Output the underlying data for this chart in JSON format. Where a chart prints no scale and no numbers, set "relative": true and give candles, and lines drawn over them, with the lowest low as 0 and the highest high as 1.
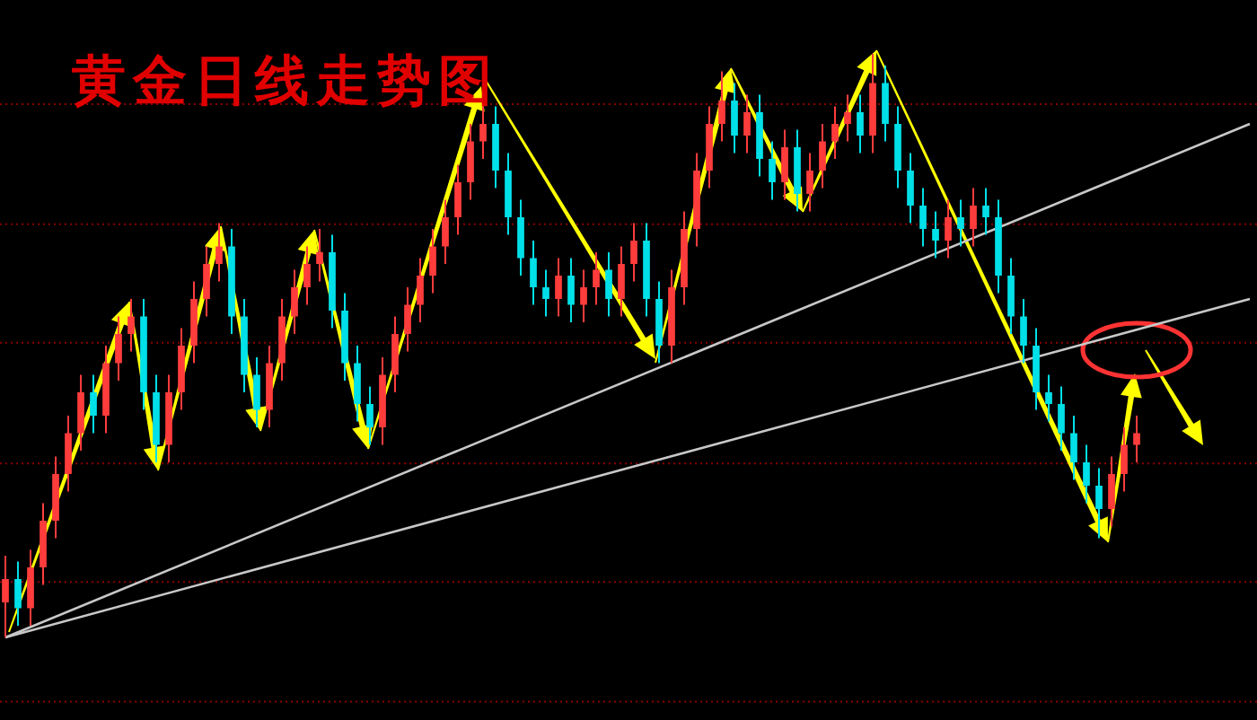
{
  "chart_data": {
    "type": "candlestick",
    "title": "黄金日线走势图",
    "relative": true,
    "ref_lines": [
      {
        "axis": "y",
        "value": 0.914,
        "color": "#8b0000",
        "line_style": "dotted"
      },
      {
        "axis": "y",
        "value": 0.708,
        "color": "#8b0000",
        "line_style": "dotted"
      },
      {
        "axis": "y",
        "value": 0.505,
        "color": "#8b0000",
        "line_style": "dotted"
      },
      {
        "axis": "y",
        "value": 0.298,
        "color": "#8b0000",
        "line_style": "dotted"
      },
      {
        "axis": "y",
        "value": 0.095,
        "color": "#8b0000",
        "line_style": "dotted"
      },
      {
        "axis": "y",
        "value": -0.11,
        "color": "#8b0000",
        "line_style": "dotted"
      }
    ],
    "categories": [
      null,
      null,
      null,
      null,
      null,
      null,
      null,
      null,
      null,
      null,
      null,
      null,
      null,
      null,
      null,
      null,
      null,
      null,
      null,
      null,
      null,
      null,
      null,
      null,
      null,
      null,
      null,
      null,
      null,
      null,
      null,
      null,
      null,
      null,
      null,
      null,
      null,
      null,
      null,
      null,
      null,
      null,
      null,
      null,
      null,
      null,
      null,
      null,
      null,
      null,
      null,
      null,
      null,
      null,
      null,
      null,
      null,
      null,
      null,
      null,
      null,
      null,
      null,
      null,
      null,
      null,
      null,
      null,
      null,
      null,
      null,
      null,
      null,
      null,
      null,
      null,
      null,
      null,
      null,
      null,
      null,
      null,
      null,
      null,
      null,
      null,
      null,
      null,
      null,
      null,
      null,
      null,
      null,
      null,
      null,
      null,
      null,
      null,
      null,
      null
    ],
    "ohlc": [
      [
        0.06,
        0.14,
        0.0,
        0.1
      ],
      [
        0.1,
        0.13,
        0.02,
        0.05
      ],
      [
        0.05,
        0.15,
        0.02,
        0.12
      ],
      [
        0.12,
        0.23,
        0.09,
        0.2
      ],
      [
        0.2,
        0.31,
        0.17,
        0.28
      ],
      [
        0.28,
        0.38,
        0.25,
        0.35
      ],
      [
        0.35,
        0.45,
        0.32,
        0.42
      ],
      [
        0.42,
        0.45,
        0.35,
        0.38
      ],
      [
        0.38,
        0.5,
        0.35,
        0.47
      ],
      [
        0.47,
        0.55,
        0.44,
        0.52
      ],
      [
        0.52,
        0.58,
        0.49,
        0.55
      ],
      [
        0.55,
        0.58,
        0.39,
        0.42
      ],
      [
        0.42,
        0.45,
        0.3,
        0.33
      ],
      [
        0.33,
        0.45,
        0.3,
        0.42
      ],
      [
        0.42,
        0.53,
        0.39,
        0.5
      ],
      [
        0.5,
        0.61,
        0.47,
        0.58
      ],
      [
        0.58,
        0.67,
        0.55,
        0.64
      ],
      [
        0.64,
        0.71,
        0.61,
        0.67
      ],
      [
        0.67,
        0.7,
        0.52,
        0.55
      ],
      [
        0.55,
        0.58,
        0.42,
        0.45
      ],
      [
        0.45,
        0.48,
        0.36,
        0.39
      ],
      [
        0.39,
        0.5,
        0.36,
        0.47
      ],
      [
        0.47,
        0.58,
        0.44,
        0.55
      ],
      [
        0.55,
        0.63,
        0.52,
        0.6
      ],
      [
        0.6,
        0.67,
        0.57,
        0.64
      ],
      [
        0.64,
        0.7,
        0.61,
        0.66
      ],
      [
        0.66,
        0.69,
        0.53,
        0.56
      ],
      [
        0.56,
        0.59,
        0.44,
        0.47
      ],
      [
        0.47,
        0.5,
        0.37,
        0.4
      ],
      [
        0.4,
        0.43,
        0.33,
        0.36
      ],
      [
        0.36,
        0.48,
        0.33,
        0.45
      ],
      [
        0.45,
        0.55,
        0.42,
        0.52
      ],
      [
        0.52,
        0.6,
        0.49,
        0.57
      ],
      [
        0.57,
        0.65,
        0.54,
        0.62
      ],
      [
        0.62,
        0.7,
        0.59,
        0.67
      ],
      [
        0.67,
        0.75,
        0.64,
        0.72
      ],
      [
        0.72,
        0.81,
        0.69,
        0.78
      ],
      [
        0.78,
        0.88,
        0.75,
        0.85
      ],
      [
        0.85,
        0.92,
        0.82,
        0.88
      ],
      [
        0.88,
        0.91,
        0.77,
        0.8
      ],
      [
        0.8,
        0.83,
        0.69,
        0.72
      ],
      [
        0.72,
        0.75,
        0.62,
        0.65
      ],
      [
        0.65,
        0.68,
        0.57,
        0.6
      ],
      [
        0.6,
        0.63,
        0.55,
        0.58
      ],
      [
        0.58,
        0.65,
        0.55,
        0.62
      ],
      [
        0.62,
        0.65,
        0.54,
        0.57
      ],
      [
        0.57,
        0.63,
        0.54,
        0.6
      ],
      [
        0.6,
        0.66,
        0.57,
        0.63
      ],
      [
        0.63,
        0.66,
        0.55,
        0.58
      ],
      [
        0.58,
        0.67,
        0.55,
        0.64
      ],
      [
        0.64,
        0.71,
        0.61,
        0.68
      ],
      [
        0.68,
        0.71,
        0.55,
        0.58
      ],
      [
        0.58,
        0.61,
        0.47,
        0.5
      ],
      [
        0.5,
        0.63,
        0.47,
        0.6
      ],
      [
        0.6,
        0.73,
        0.57,
        0.7
      ],
      [
        0.7,
        0.83,
        0.67,
        0.8
      ],
      [
        0.8,
        0.91,
        0.77,
        0.88
      ],
      [
        0.88,
        0.97,
        0.85,
        0.92
      ],
      [
        0.92,
        0.95,
        0.83,
        0.86
      ],
      [
        0.86,
        0.93,
        0.83,
        0.9
      ],
      [
        0.9,
        0.93,
        0.79,
        0.82
      ],
      [
        0.82,
        0.85,
        0.75,
        0.78
      ],
      [
        0.78,
        0.87,
        0.75,
        0.84
      ],
      [
        0.84,
        0.87,
        0.73,
        0.76
      ],
      [
        0.76,
        0.83,
        0.73,
        0.8
      ],
      [
        0.8,
        0.88,
        0.77,
        0.85
      ],
      [
        0.85,
        0.91,
        0.82,
        0.88
      ],
      [
        0.88,
        0.93,
        0.85,
        0.9
      ],
      [
        0.9,
        0.93,
        0.83,
        0.86
      ],
      [
        0.86,
        1.0,
        0.83,
        0.95
      ],
      [
        0.95,
        0.98,
        0.85,
        0.88
      ],
      [
        0.88,
        0.91,
        0.77,
        0.8
      ],
      [
        0.8,
        0.83,
        0.71,
        0.74
      ],
      [
        0.74,
        0.77,
        0.67,
        0.7
      ],
      [
        0.7,
        0.73,
        0.65,
        0.68
      ],
      [
        0.68,
        0.75,
        0.65,
        0.72
      ],
      [
        0.72,
        0.75,
        0.67,
        0.7
      ],
      [
        0.7,
        0.77,
        0.67,
        0.74
      ],
      [
        0.74,
        0.77,
        0.69,
        0.72
      ],
      [
        0.72,
        0.75,
        0.59,
        0.62
      ],
      [
        0.62,
        0.65,
        0.52,
        0.55
      ],
      [
        0.55,
        0.58,
        0.47,
        0.5
      ],
      [
        0.5,
        0.53,
        0.39,
        0.42
      ],
      [
        0.42,
        0.45,
        0.37,
        0.4
      ],
      [
        0.4,
        0.43,
        0.32,
        0.35
      ],
      [
        0.35,
        0.38,
        0.27,
        0.3
      ],
      [
        0.3,
        0.33,
        0.23,
        0.26
      ],
      [
        0.26,
        0.29,
        0.17,
        0.22
      ],
      [
        0.22,
        0.31,
        0.19,
        0.28
      ],
      [
        0.28,
        0.36,
        0.25,
        0.33
      ],
      [
        0.33,
        0.38,
        0.3,
        0.35
      ],
      null,
      null,
      null,
      null,
      null,
      null,
      null,
      null,
      null
    ],
    "series": [
      {
        "type": "line",
        "color": "#c8c8c8",
        "values": [
          0.0,
          null,
          null,
          null,
          null,
          null,
          null,
          null,
          null,
          null,
          null,
          null,
          null,
          null,
          null,
          null,
          null,
          null,
          null,
          null,
          null,
          null,
          null,
          null,
          null,
          null,
          null,
          null,
          null,
          null,
          null,
          null,
          null,
          null,
          null,
          null,
          null,
          null,
          null,
          null,
          null,
          null,
          null,
          null,
          null,
          null,
          null,
          null,
          null,
          null,
          null,
          null,
          null,
          null,
          null,
          null,
          null,
          null,
          null,
          null,
          null,
          null,
          null,
          null,
          null,
          null,
          null,
          null,
          null,
          null,
          null,
          null,
          null,
          null,
          null,
          null,
          null,
          null,
          null,
          null,
          null,
          null,
          null,
          null,
          null,
          null,
          null,
          null,
          null,
          null,
          null,
          null,
          null,
          null,
          null,
          null,
          null,
          null,
          null,
          0.88
        ]
      },
      {
        "type": "line",
        "color": "#c8c8c8",
        "values": [
          0.0,
          null,
          null,
          null,
          null,
          null,
          null,
          null,
          null,
          null,
          null,
          null,
          null,
          null,
          null,
          null,
          null,
          null,
          null,
          null,
          null,
          null,
          null,
          null,
          null,
          null,
          null,
          null,
          null,
          null,
          null,
          null,
          null,
          null,
          null,
          null,
          null,
          null,
          null,
          null,
          null,
          null,
          null,
          null,
          null,
          null,
          null,
          null,
          null,
          null,
          null,
          null,
          null,
          null,
          null,
          null,
          null,
          null,
          null,
          null,
          null,
          null,
          null,
          null,
          null,
          null,
          null,
          null,
          null,
          null,
          null,
          null,
          null,
          null,
          null,
          null,
          null,
          null,
          null,
          null,
          null,
          null,
          null,
          null,
          null,
          null,
          null,
          null,
          null,
          null,
          null,
          null,
          null,
          null,
          null,
          null,
          null,
          null,
          null,
          0.58
        ]
      }
    ]
  }
}
